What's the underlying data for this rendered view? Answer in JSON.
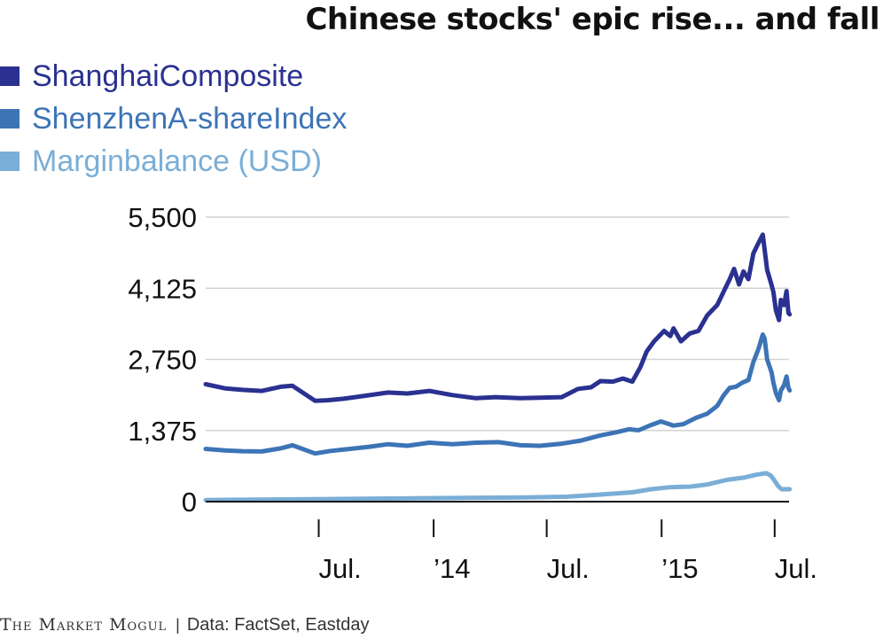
{
  "chart_data": {
    "type": "line",
    "title": "Chinese stocks' epic rise... and fall",
    "source": "Data: FactSet, Eastday",
    "logo": "The Market Mogul",
    "footer_separator": "|",
    "y_ticks": [
      0,
      1375,
      2750,
      4125,
      5500
    ],
    "y_tick_labels": [
      "0",
      "1,375",
      "2,750",
      "4,125",
      "5,500"
    ],
    "ylim": [
      0,
      5500
    ],
    "x_range": [
      "2013-01-01",
      "2015-07-24"
    ],
    "x_ticks": [
      {
        "date": "2013-07-01",
        "label": "Jul."
      },
      {
        "date": "2014-01-01",
        "label": "’14"
      },
      {
        "date": "2014-07-01",
        "label": "Jul."
      },
      {
        "date": "2015-01-01",
        "label": "’15"
      },
      {
        "date": "2015-07-01",
        "label": "Jul."
      }
    ],
    "grid": true,
    "legend_position": "top-left",
    "series": [
      {
        "name": "ShanghaiComposite",
        "color": "#2a3190",
        "points": [
          [
            "2013-01-01",
            2270
          ],
          [
            "2013-02-01",
            2190
          ],
          [
            "2013-03-01",
            2160
          ],
          [
            "2013-04-01",
            2140
          ],
          [
            "2013-05-01",
            2220
          ],
          [
            "2013-05-20",
            2240
          ],
          [
            "2013-06-25",
            1950
          ],
          [
            "2013-07-15",
            1960
          ],
          [
            "2013-08-10",
            1990
          ],
          [
            "2013-09-15",
            2050
          ],
          [
            "2013-10-20",
            2110
          ],
          [
            "2013-11-20",
            2090
          ],
          [
            "2013-12-25",
            2140
          ],
          [
            "2014-01-31",
            2060
          ],
          [
            "2014-03-10",
            2000
          ],
          [
            "2014-04-10",
            2020
          ],
          [
            "2014-05-20",
            2000
          ],
          [
            "2014-06-20",
            2010
          ],
          [
            "2014-07-25",
            2020
          ],
          [
            "2014-08-20",
            2180
          ],
          [
            "2014-09-10",
            2210
          ],
          [
            "2014-09-25",
            2330
          ],
          [
            "2014-10-15",
            2320
          ],
          [
            "2014-10-31",
            2380
          ],
          [
            "2014-11-15",
            2320
          ],
          [
            "2014-11-28",
            2600
          ],
          [
            "2014-12-08",
            2900
          ],
          [
            "2014-12-20",
            3100
          ],
          [
            "2015-01-05",
            3300
          ],
          [
            "2015-01-15",
            3200
          ],
          [
            "2015-01-20",
            3350
          ],
          [
            "2015-02-01",
            3100
          ],
          [
            "2015-02-15",
            3250
          ],
          [
            "2015-03-01",
            3300
          ],
          [
            "2015-03-15",
            3600
          ],
          [
            "2015-03-31",
            3800
          ],
          [
            "2015-04-10",
            4050
          ],
          [
            "2015-04-20",
            4300
          ],
          [
            "2015-04-27",
            4500
          ],
          [
            "2015-05-05",
            4200
          ],
          [
            "2015-05-12",
            4450
          ],
          [
            "2015-05-20",
            4300
          ],
          [
            "2015-05-28",
            4800
          ],
          [
            "2015-06-05",
            5000
          ],
          [
            "2015-06-12",
            5160
          ],
          [
            "2015-06-19",
            4480
          ],
          [
            "2015-06-26",
            4190
          ],
          [
            "2015-06-29",
            4050
          ],
          [
            "2015-07-03",
            3700
          ],
          [
            "2015-07-08",
            3510
          ],
          [
            "2015-07-11",
            3900
          ],
          [
            "2015-07-16",
            3800
          ],
          [
            "2015-07-20",
            4070
          ],
          [
            "2015-07-23",
            3650
          ],
          [
            "2015-07-25",
            3620
          ]
        ]
      },
      {
        "name": "ShenzhenA-shareIndex",
        "color": "#3d74b6",
        "points": [
          [
            "2013-01-01",
            1020
          ],
          [
            "2013-02-01",
            990
          ],
          [
            "2013-03-01",
            975
          ],
          [
            "2013-04-01",
            970
          ],
          [
            "2013-05-01",
            1030
          ],
          [
            "2013-05-20",
            1090
          ],
          [
            "2013-06-25",
            930
          ],
          [
            "2013-07-20",
            980
          ],
          [
            "2013-08-20",
            1020
          ],
          [
            "2013-09-20",
            1060
          ],
          [
            "2013-10-20",
            1110
          ],
          [
            "2013-11-20",
            1080
          ],
          [
            "2013-12-25",
            1140
          ],
          [
            "2014-01-31",
            1110
          ],
          [
            "2014-03-10",
            1140
          ],
          [
            "2014-04-15",
            1150
          ],
          [
            "2014-05-20",
            1090
          ],
          [
            "2014-06-20",
            1080
          ],
          [
            "2014-07-25",
            1120
          ],
          [
            "2014-08-25",
            1180
          ],
          [
            "2014-09-25",
            1280
          ],
          [
            "2014-10-20",
            1340
          ],
          [
            "2014-11-10",
            1400
          ],
          [
            "2014-11-25",
            1380
          ],
          [
            "2014-12-15",
            1480
          ],
          [
            "2014-12-31",
            1550
          ],
          [
            "2015-01-20",
            1470
          ],
          [
            "2015-02-05",
            1500
          ],
          [
            "2015-02-25",
            1620
          ],
          [
            "2015-03-15",
            1700
          ],
          [
            "2015-03-31",
            1850
          ],
          [
            "2015-04-10",
            2050
          ],
          [
            "2015-04-20",
            2200
          ],
          [
            "2015-04-30",
            2220
          ],
          [
            "2015-05-10",
            2300
          ],
          [
            "2015-05-20",
            2350
          ],
          [
            "2015-05-28",
            2700
          ],
          [
            "2015-06-05",
            2950
          ],
          [
            "2015-06-12",
            3230
          ],
          [
            "2015-06-15",
            3150
          ],
          [
            "2015-06-19",
            2750
          ],
          [
            "2015-06-26",
            2500
          ],
          [
            "2015-06-29",
            2300
          ],
          [
            "2015-07-03",
            2100
          ],
          [
            "2015-07-08",
            1960
          ],
          [
            "2015-07-11",
            2150
          ],
          [
            "2015-07-16",
            2250
          ],
          [
            "2015-07-20",
            2420
          ],
          [
            "2015-07-23",
            2200
          ],
          [
            "2015-07-25",
            2150
          ]
        ]
      },
      {
        "name": "Marginbalance (USD)",
        "color": "#7aaed6",
        "points": [
          [
            "2013-01-01",
            30
          ],
          [
            "2013-06-01",
            45
          ],
          [
            "2013-12-01",
            65
          ],
          [
            "2014-06-01",
            80
          ],
          [
            "2014-08-01",
            95
          ],
          [
            "2014-10-01",
            140
          ],
          [
            "2014-11-15",
            180
          ],
          [
            "2014-12-15",
            240
          ],
          [
            "2015-01-15",
            280
          ],
          [
            "2015-02-15",
            290
          ],
          [
            "2015-03-15",
            330
          ],
          [
            "2015-04-15",
            420
          ],
          [
            "2015-05-15",
            470
          ],
          [
            "2015-06-01",
            520
          ],
          [
            "2015-06-18",
            550
          ],
          [
            "2015-06-25",
            500
          ],
          [
            "2015-06-30",
            420
          ],
          [
            "2015-07-06",
            310
          ],
          [
            "2015-07-12",
            240
          ],
          [
            "2015-07-25",
            240
          ]
        ]
      }
    ]
  }
}
